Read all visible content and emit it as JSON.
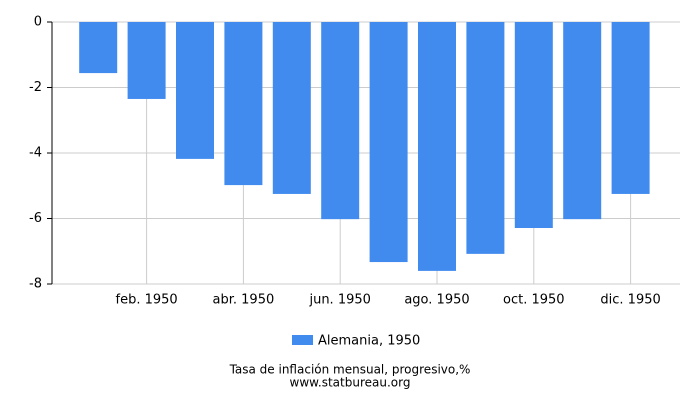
{
  "chart_data": {
    "type": "bar",
    "title": "Tasa de inflación mensual, progresivo,%",
    "source": "www.statbureau.org",
    "categories": [
      null,
      "feb. 1950",
      null,
      "abr. 1950",
      null,
      "jun. 1950",
      null,
      "ago. 1950",
      null,
      "oct. 1950",
      null,
      "dic. 1950"
    ],
    "series": [
      {
        "name": "Alemania, 1950",
        "color": "#418bef",
        "values": [
          -1.56,
          -2.35,
          -4.18,
          -4.98,
          -5.25,
          -6.02,
          -7.33,
          -7.6,
          -7.08,
          -6.29,
          -6.02,
          -5.25
        ]
      }
    ],
    "ylim": [
      -8,
      0
    ],
    "yticks": [
      0,
      -2,
      -4,
      -6,
      -8
    ],
    "grid": true
  }
}
